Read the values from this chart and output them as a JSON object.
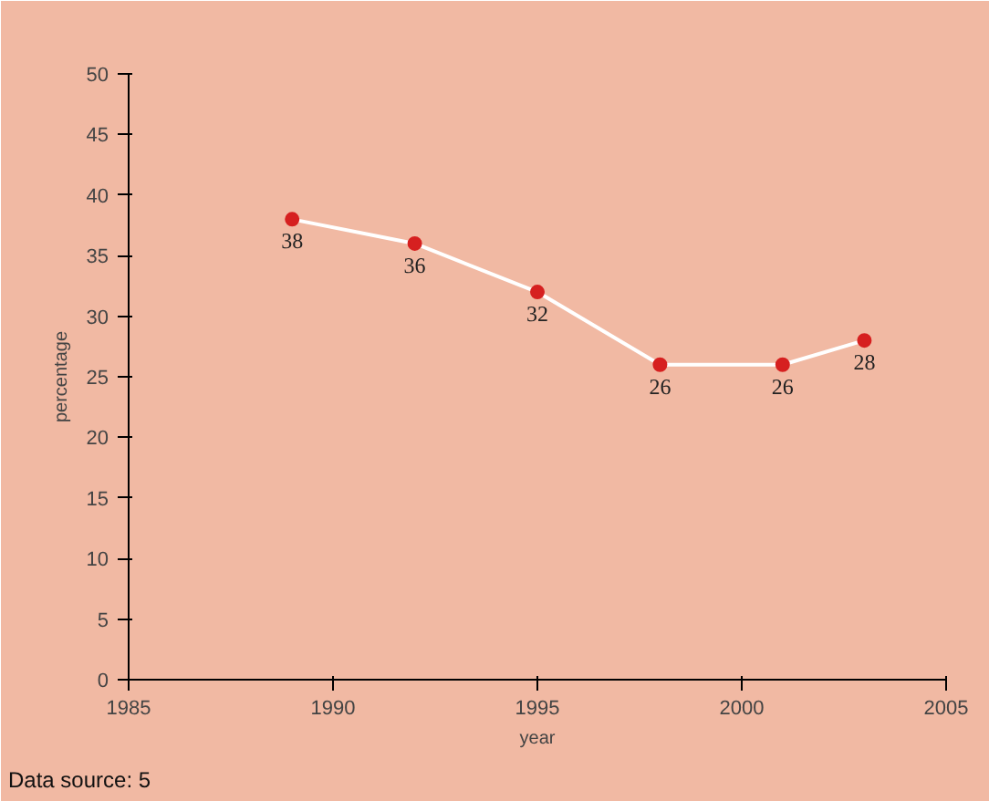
{
  "chart_data": {
    "type": "line",
    "xlabel": "year",
    "ylabel": "percentage",
    "x": [
      1989,
      1992,
      1995,
      1998,
      2001,
      2003
    ],
    "series": [
      {
        "color": "#ffffff",
        "colors": [
          "#d62020",
          "#d62020",
          "#d62020",
          "#d62020",
          "#d62020",
          "#d62020"
        ],
        "values": [
          38,
          36,
          32,
          26,
          26,
          28
        ]
      }
    ],
    "marker": "circle",
    "line_style": "solid",
    "data_labels": true,
    "grid": false,
    "xlim": [
      1985,
      2005
    ],
    "xticks": [
      1985,
      1990,
      1995,
      2000,
      2005
    ],
    "ylim": [
      0,
      50
    ],
    "yticks": [
      0,
      5,
      10,
      15,
      20,
      25,
      30,
      35,
      40,
      45,
      50
    ],
    "annotations": [
      "Data source: 5"
    ]
  }
}
